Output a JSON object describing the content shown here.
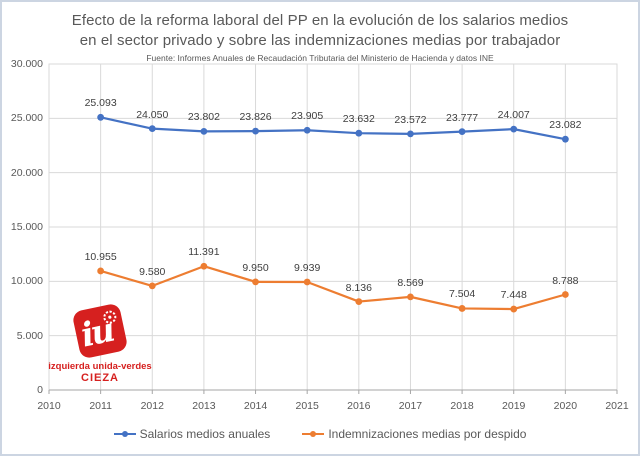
{
  "chart_data": {
    "type": "line",
    "title": "Efecto de la reforma laboral del PP en la evolución de los salarios medios en el sector privado y sobre las indemnizaciones medias por trabajador",
    "title_lines": [
      "Efecto de la reforma laboral del PP en la evolución de los salarios medios",
      "en el sector privado y sobre las indemnizaciones medias por trabajador"
    ],
    "subtitle": "Fuente: Informes Anuales de Recaudación Tributaria del Ministerio de Hacienda y datos INE",
    "xlabel": "",
    "ylabel": "",
    "grid": true,
    "legend_position": "bottom",
    "xlim": [
      2010,
      2021
    ],
    "ylim": [
      0,
      30000
    ],
    "x": [
      2011,
      2012,
      2013,
      2014,
      2015,
      2016,
      2017,
      2018,
      2019,
      2020
    ],
    "xticks": [
      2010,
      2011,
      2012,
      2013,
      2014,
      2015,
      2016,
      2017,
      2018,
      2019,
      2020,
      2021
    ],
    "yticks": [
      {
        "v": 30000,
        "label": "30.000"
      },
      {
        "v": 25000,
        "label": "25.000"
      },
      {
        "v": 20000,
        "label": "20.000"
      },
      {
        "v": 15000,
        "label": "15.000"
      },
      {
        "v": 10000,
        "label": "10.000"
      },
      {
        "v": 5000,
        "label": "5.000"
      },
      {
        "v": 0,
        "label": "0"
      }
    ],
    "series": [
      {
        "name": "Salarios medios anuales",
        "color": "#4472C4",
        "values": [
          25093,
          24050,
          23802,
          23826,
          23905,
          23632,
          23572,
          23777,
          24007,
          23082
        ],
        "labels": [
          "25.093",
          "24.050",
          "23.802",
          "23.826",
          "23.905",
          "23.632",
          "23.572",
          "23.777",
          "24.007",
          "23.082"
        ]
      },
      {
        "name": "Indemnizaciones medias por despido",
        "color": "#ED7D31",
        "values": [
          10955,
          9580,
          11391,
          9950,
          9939,
          8136,
          8569,
          7504,
          7448,
          8788
        ],
        "labels": [
          "10.955",
          "9.580",
          "11.391",
          "9.950",
          "9.939",
          "8.136",
          "8.569",
          "7.504",
          "7.448",
          "8.788"
        ]
      }
    ]
  },
  "colors": {
    "grid": "#d9d9d9",
    "axis": "#a6a6a6",
    "tick_text": "#595959",
    "data_label_text": "#404040"
  },
  "logo": {
    "monogram": "iu",
    "line1": "izquierda unida-verdes",
    "line2": "CIEZA",
    "color": "#d6201f"
  }
}
